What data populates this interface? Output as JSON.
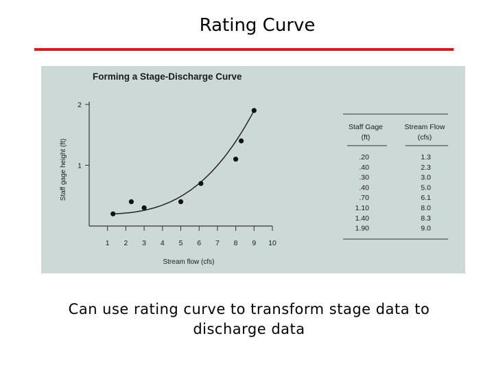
{
  "slide": {
    "title": "Rating Curve",
    "caption_line1": "Can use rating curve  to transform stage data to",
    "caption_line2": "discharge data",
    "accent_color": "#e8141a"
  },
  "chart_data": {
    "type": "scatter",
    "title": "Forming a Stage-Discharge Curve",
    "xlabel": "Stream flow (cfs)",
    "ylabel": "Staff gage height (ft)",
    "xlim": [
      0,
      10
    ],
    "ylim": [
      0,
      2
    ],
    "x_ticks": [
      1,
      2,
      3,
      4,
      5,
      6,
      7,
      8,
      9,
      10
    ],
    "y_ticks": [
      1,
      2
    ],
    "points": [
      {
        "x": 1.3,
        "y": 0.2
      },
      {
        "x": 2.3,
        "y": 0.4
      },
      {
        "x": 3.0,
        "y": 0.3
      },
      {
        "x": 5.0,
        "y": 0.4
      },
      {
        "x": 6.1,
        "y": 0.7
      },
      {
        "x": 8.0,
        "y": 1.1
      },
      {
        "x": 8.3,
        "y": 1.4
      },
      {
        "x": 9.0,
        "y": 1.9
      }
    ],
    "table": {
      "col1_header_line1": "Staff Gage",
      "col1_header_line2": "(ft)",
      "col2_header_line1": "Stream Flow",
      "col2_header_line2": "(cfs)",
      "rows": [
        [
          ".20",
          "1.3"
        ],
        [
          ".40",
          "2.3"
        ],
        [
          ".30",
          "3.0"
        ],
        [
          ".40",
          "5.0"
        ],
        [
          ".70",
          "6.1"
        ],
        [
          "1.10",
          "8.0"
        ],
        [
          "1.40",
          "8.3"
        ],
        [
          "1.90",
          "9.0"
        ]
      ]
    }
  }
}
